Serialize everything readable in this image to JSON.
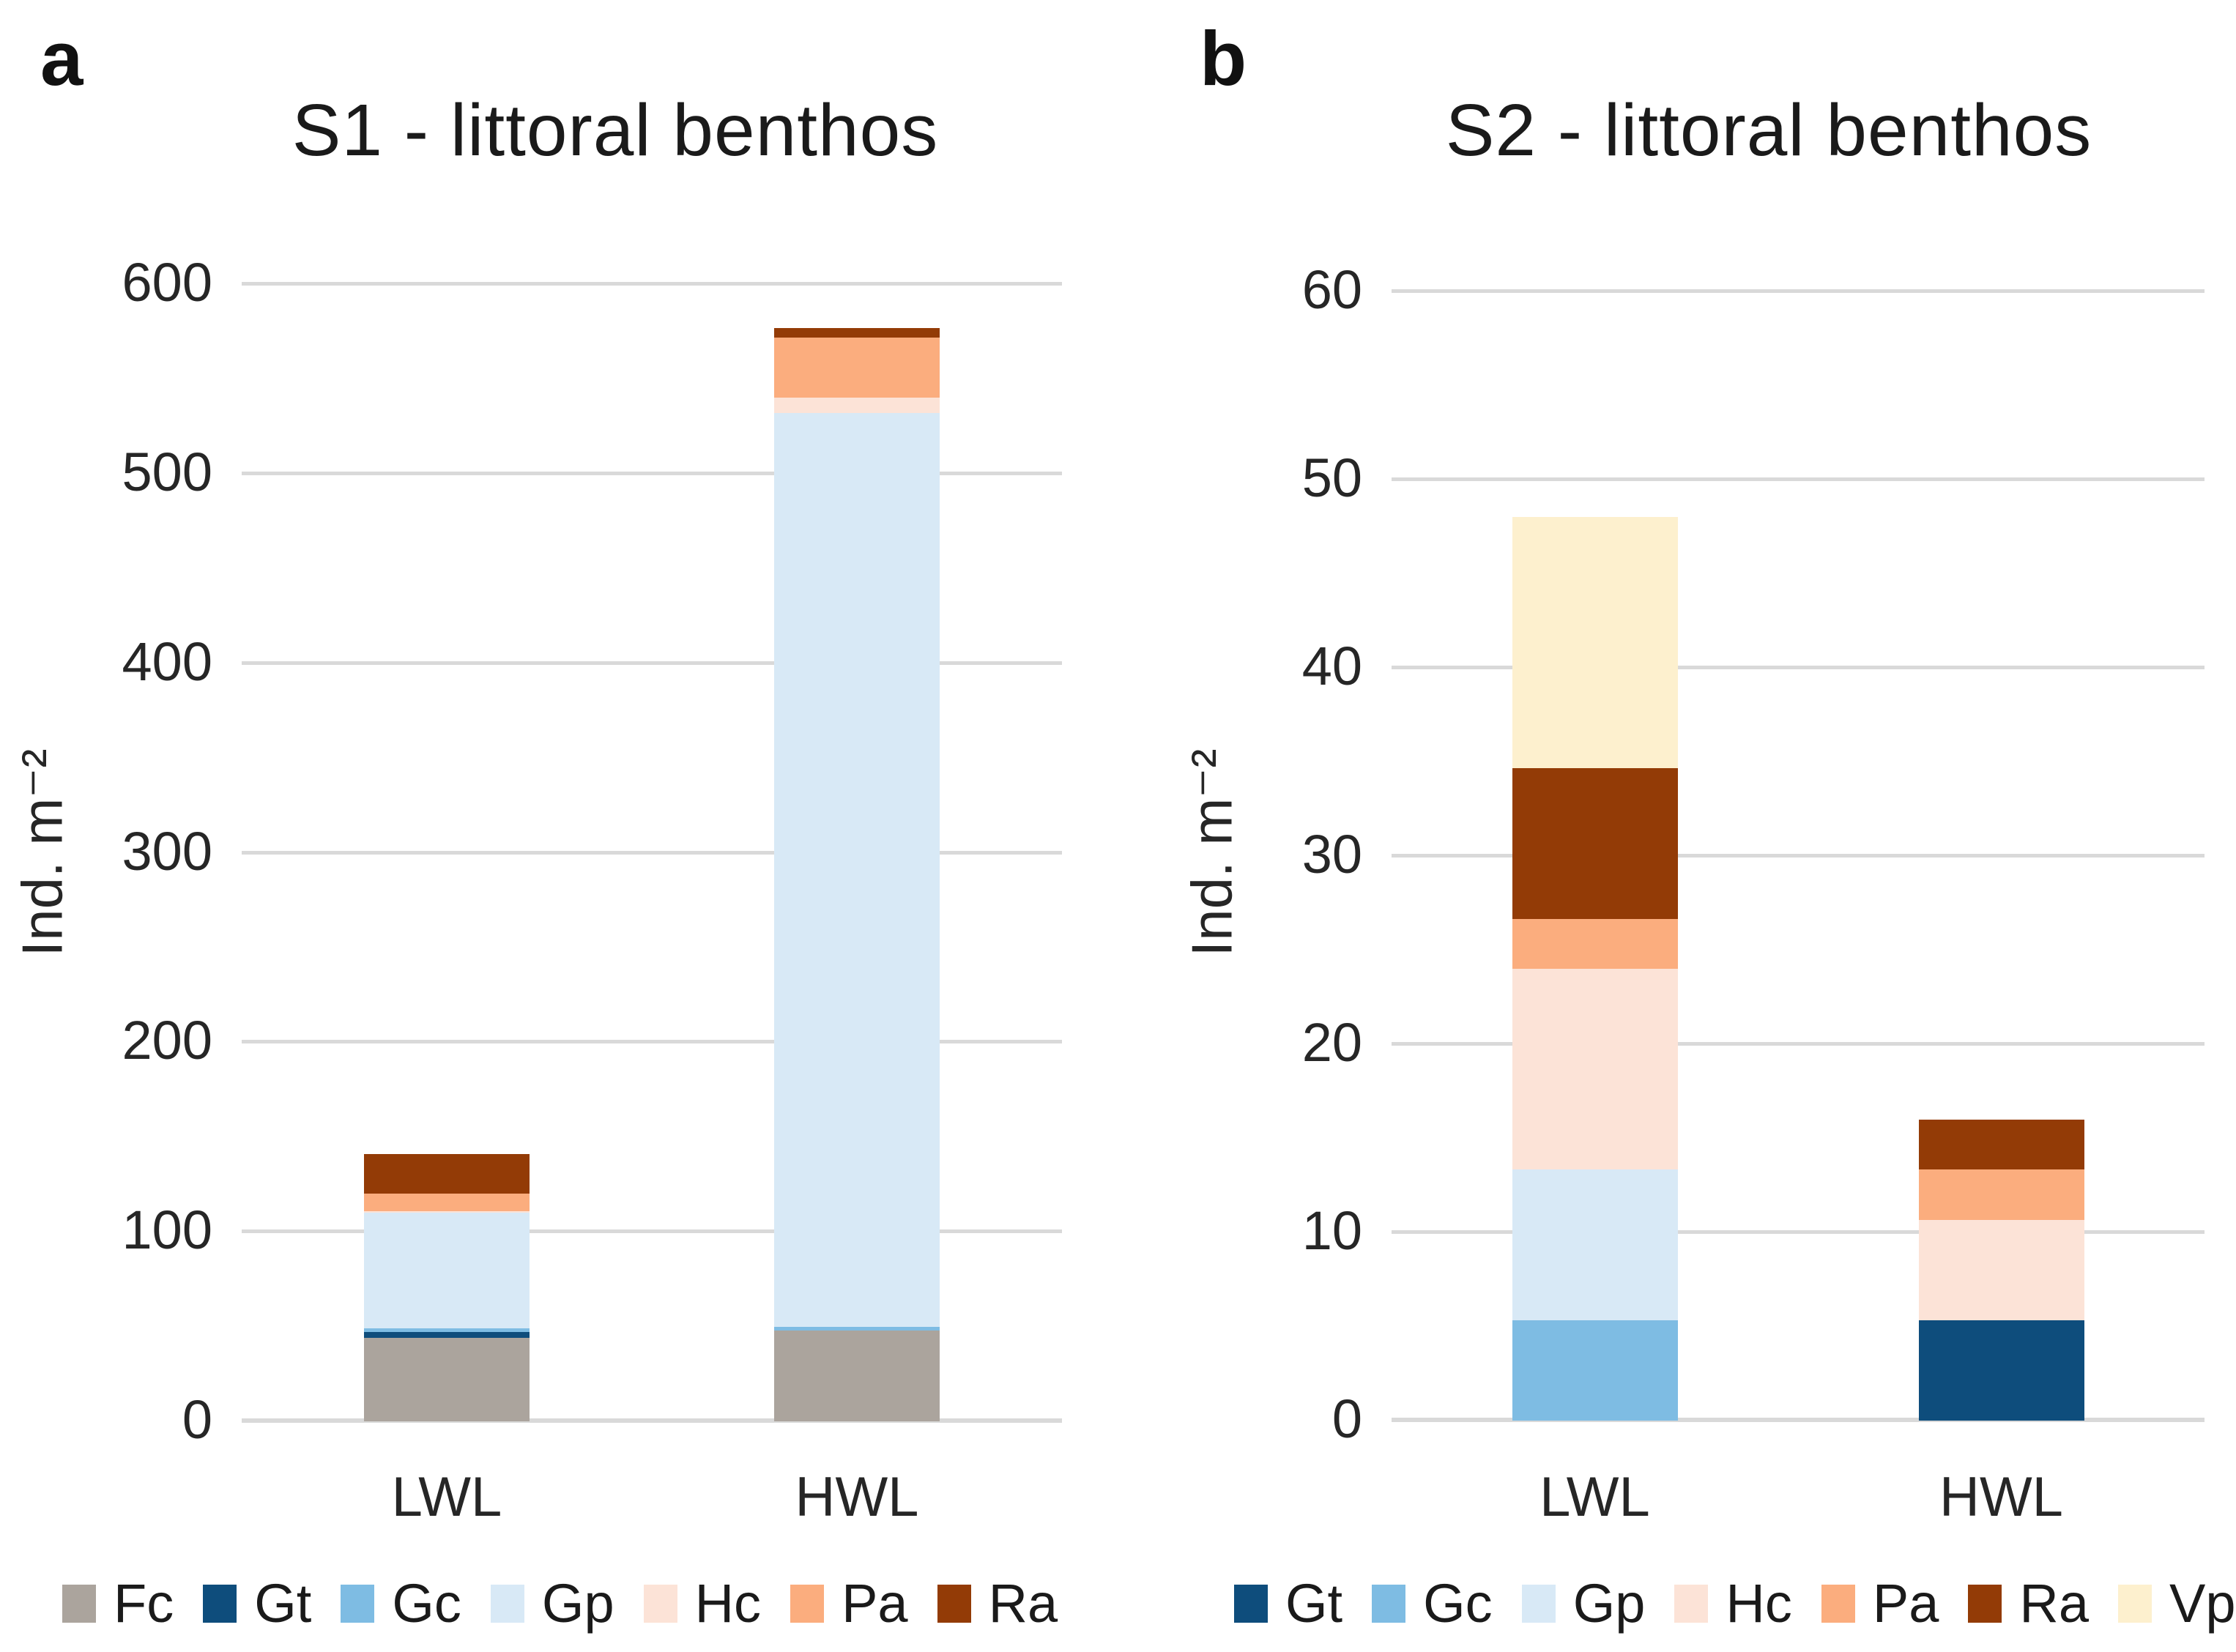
{
  "figure": {
    "background": "#ffffff",
    "gridline_color": "#d9d9d9",
    "text_color": "#262626"
  },
  "chart_data": [
    {
      "type": "bar",
      "stacked": true,
      "panel_letter": "a",
      "title": "S1 - littoral benthos",
      "ylabel": "Ind. m⁻²",
      "ylim": [
        0,
        600
      ],
      "ytick_step": 100,
      "ytick_labels": [
        "0",
        "100",
        "200",
        "300",
        "400",
        "500",
        "600"
      ],
      "grid": true,
      "legend_position": "bottom",
      "categories": [
        "LWL",
        "HWL"
      ],
      "series": [
        {
          "name": "Fc",
          "color": "#ABA49D",
          "values": [
            44,
            48
          ]
        },
        {
          "name": "Gt",
          "color": "#0E4D7C",
          "values": [
            3,
            0
          ]
        },
        {
          "name": "Gc",
          "color": "#7EBCE3",
          "values": [
            2,
            2
          ]
        },
        {
          "name": "Gp",
          "color": "#D8E9F6",
          "values": [
            61,
            482
          ]
        },
        {
          "name": "Hc",
          "color": "#FCE3D7",
          "values": [
            1,
            8
          ]
        },
        {
          "name": "Pa",
          "color": "#FBAD7E",
          "values": [
            9,
            32
          ]
        },
        {
          "name": "Ra",
          "color": "#933B06",
          "values": [
            21,
            5
          ]
        }
      ],
      "bar_totals": [
        141,
        577
      ]
    },
    {
      "type": "bar",
      "stacked": true,
      "panel_letter": "b",
      "title": "S2 - littoral benthos",
      "ylabel": "Ind. m⁻²",
      "ylim": [
        0,
        60
      ],
      "ytick_step": 10,
      "ytick_labels": [
        "0",
        "10",
        "20",
        "30",
        "40",
        "50",
        "60"
      ],
      "grid": true,
      "legend_position": "bottom",
      "categories": [
        "LWL",
        "HWL"
      ],
      "series": [
        {
          "name": "Gt",
          "color": "#0E4D7C",
          "values": [
            0,
            5.33
          ]
        },
        {
          "name": "Gc",
          "color": "#7EBCE3",
          "values": [
            5.33,
            0
          ]
        },
        {
          "name": "Gp",
          "color": "#D8E9F6",
          "values": [
            8,
            0
          ]
        },
        {
          "name": "Hc",
          "color": "#FCE3D7",
          "values": [
            10.67,
            5.33
          ]
        },
        {
          "name": "Pa",
          "color": "#FBAD7E",
          "values": [
            2.67,
            2.67
          ]
        },
        {
          "name": "Ra",
          "color": "#933B06",
          "values": [
            8,
            2.67
          ]
        },
        {
          "name": "Vp",
          "color": "#FDF0CE",
          "values": [
            13.33,
            0
          ]
        }
      ],
      "bar_totals": [
        48,
        16
      ]
    }
  ]
}
